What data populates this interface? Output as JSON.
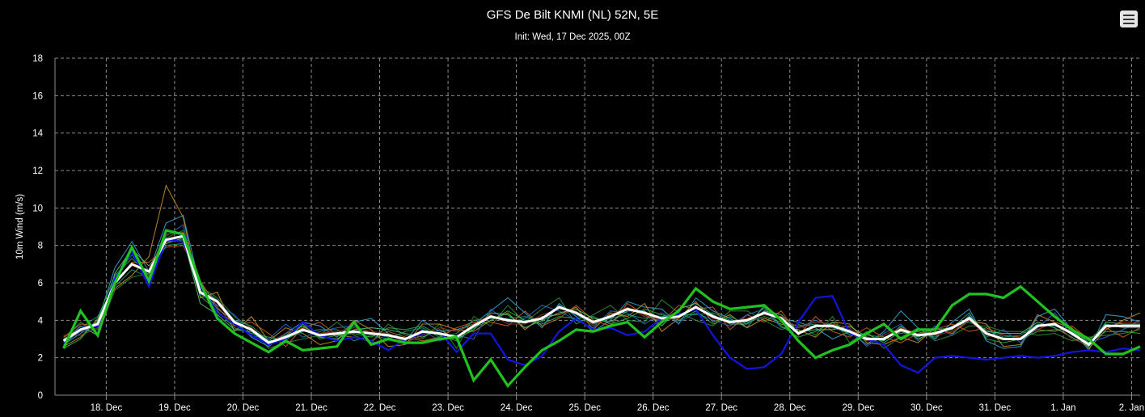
{
  "header": {
    "title": "GFS De Bilt KNMI (NL) 52N, 5E",
    "subtitle": "Init: Wed, 17 Dec 2025, 00Z"
  },
  "menu": {
    "icon": "hamburger-menu-icon"
  },
  "chart_data": {
    "type": "line",
    "title": "GFS De Bilt KNMI (NL) 52N, 5E",
    "subtitle": "Init: Wed, 17 Dec 2025, 00Z",
    "ylabel": "10m Wind (m/s)",
    "xlabel": "",
    "ylim": [
      0,
      18
    ],
    "yticks": [
      0,
      2,
      4,
      6,
      8,
      10,
      12,
      14,
      16,
      18
    ],
    "xlim": [
      "2025-12-17 06:00",
      "2026-01-02 03:00"
    ],
    "step_hours": 6,
    "xtick_labels": [
      "18. Dec",
      "19. Dec",
      "20. Dec",
      "21. Dec",
      "22. Dec",
      "23. Dec",
      "24. Dec",
      "25. Dec",
      "26. Dec",
      "27. Dec",
      "28. Dec",
      "29. Dec",
      "30. Dec",
      "31. Dec",
      "1. Jan",
      "2. Jan"
    ],
    "grid": true,
    "legend": "none",
    "colors": {
      "background": "#000000",
      "grid": "#8c8c8c",
      "mean": "#ffffff",
      "control": "#1fc21f",
      "operational": "#1414e0"
    },
    "highlighted": {
      "mean": [
        2.9,
        3.5,
        3.8,
        6.0,
        7.0,
        6.6,
        8.3,
        8.5,
        5.5,
        5.0,
        3.9,
        3.5,
        2.8,
        3.1,
        3.5,
        3.2,
        3.3,
        3.4,
        3.3,
        3.2,
        3.0,
        3.4,
        3.3,
        3.1,
        3.7,
        4.2,
        4.0,
        3.9,
        4.1,
        4.7,
        4.4,
        3.9,
        4.2,
        4.6,
        4.4,
        4.1,
        4.2,
        4.7,
        4.2,
        3.9,
        4.0,
        4.4,
        4.1,
        3.3,
        3.7,
        3.7,
        3.4,
        3.0,
        3.0,
        3.5,
        3.2,
        3.3,
        3.6,
        4.1,
        3.3,
        3.0,
        3.0,
        3.7,
        3.8,
        3.3,
        2.7,
        3.7,
        3.7,
        3.7
      ],
      "control": [
        2.5,
        4.5,
        3.2,
        6.0,
        7.9,
        6.1,
        8.8,
        8.6,
        6.0,
        4.1,
        3.3,
        2.8,
        2.3,
        2.9,
        2.4,
        2.5,
        2.6,
        3.9,
        2.7,
        3.0,
        2.8,
        2.8,
        3.0,
        3.1,
        0.8,
        1.9,
        0.5,
        1.5,
        2.4,
        2.9,
        3.5,
        3.4,
        3.7,
        3.9,
        3.1,
        3.9,
        4.5,
        5.7,
        5.0,
        4.6,
        4.7,
        4.8,
        4.0,
        2.9,
        2.0,
        2.4,
        2.7,
        3.3,
        3.8,
        3.0,
        3.5,
        3.5,
        4.8,
        5.4,
        5.4,
        5.2,
        5.8,
        5.0,
        4.2,
        3.5,
        3.0,
        2.2,
        2.2,
        2.6
      ],
      "operational": [
        2.8,
        3.6,
        3.7,
        6.2,
        7.7,
        5.8,
        8.3,
        8.2,
        5.8,
        4.4,
        3.8,
        3.2,
        2.7,
        3.0,
        3.9,
        3.2,
        2.9,
        3.1,
        2.9,
        2.4,
        3.0,
        3.3,
        3.4,
        2.3,
        3.3,
        3.3,
        1.9,
        1.6,
        2.1,
        3.4,
        4.1,
        3.5,
        3.6,
        3.2,
        3.4,
        4.1,
        4.3,
        4.6,
        3.2,
        2.0,
        1.4,
        1.5,
        2.2,
        3.9,
        5.2,
        5.3,
        3.3,
        3.0,
        2.7,
        1.6,
        1.2,
        2.0,
        2.1,
        2.0,
        1.9,
        2.0,
        2.1,
        2.0,
        2.1,
        2.3,
        2.4,
        2.3,
        2.5,
        2.4
      ]
    },
    "members": [
      {
        "color": "#3aa3d6",
        "values": [
          2.7,
          3.3,
          3.9,
          6.8,
          8.2,
          6.6,
          9.2,
          9.6,
          5.8,
          4.6,
          4.0,
          3.1,
          2.6,
          3.3,
          3.9,
          3.7,
          3.1,
          3.9,
          4.1,
          3.3,
          2.9,
          4.0,
          3.4,
          3.5,
          3.8,
          4.5,
          5.2,
          4.4,
          3.6,
          4.9,
          4.2,
          3.4,
          4.0,
          5.0,
          4.7,
          4.6,
          3.8,
          5.2,
          4.5,
          4.1,
          3.6,
          4.8,
          4.1,
          3.9,
          3.6,
          3.0,
          3.4,
          2.7,
          3.4,
          4.5,
          3.6,
          3.0,
          3.9,
          4.6,
          2.9,
          2.5,
          2.6,
          4.2,
          4.6,
          3.5,
          2.4,
          4.3,
          4.2,
          3.9
        ]
      },
      {
        "color": "#2b8f3a",
        "values": [
          3.0,
          3.9,
          3.3,
          5.6,
          6.3,
          6.5,
          8.4,
          8.8,
          5.8,
          5.2,
          4.2,
          3.6,
          2.5,
          2.8,
          3.0,
          3.2,
          3.9,
          3.2,
          2.8,
          3.8,
          3.2,
          3.0,
          3.8,
          2.5,
          4.2,
          3.7,
          4.8,
          3.9,
          4.6,
          5.2,
          3.8,
          4.3,
          4.8,
          4.0,
          3.9,
          5.1,
          4.4,
          4.0,
          3.7,
          4.5,
          4.5,
          4.0,
          3.5,
          3.8,
          3.2,
          4.2,
          2.8,
          3.4,
          2.5,
          3.1,
          3.6,
          2.9,
          3.2,
          3.7,
          3.7,
          3.4,
          3.4,
          3.2,
          3.3,
          2.9,
          3.1,
          3.2,
          3.3,
          3.5
        ]
      },
      {
        "color": "#c8902a",
        "values": [
          2.6,
          3.1,
          4.0,
          5.7,
          6.4,
          7.4,
          11.2,
          9.5,
          5.2,
          5.5,
          3.4,
          4.2,
          2.9,
          3.6,
          3.3,
          2.7,
          2.9,
          4.0,
          3.5,
          2.6,
          2.7,
          3.8,
          3.8,
          3.5,
          3.4,
          4.0,
          4.4,
          3.5,
          4.2,
          4.3,
          4.7,
          3.5,
          4.4,
          4.2,
          4.9,
          3.4,
          4.1,
          5.0,
          3.9,
          4.3,
          3.6,
          4.1,
          3.8,
          3.5,
          3.1,
          3.9,
          3.8,
          2.8,
          2.7,
          3.1,
          2.8,
          3.6,
          3.3,
          4.0,
          3.8,
          2.6,
          2.7,
          4.3,
          3.9,
          3.6,
          2.5,
          3.5,
          4.0,
          4.4
        ]
      },
      {
        "color": "#c9601e",
        "values": [
          3.1,
          3.8,
          3.7,
          5.9,
          7.1,
          7.1,
          7.9,
          8.0,
          6.1,
          4.7,
          3.7,
          3.9,
          3.3,
          2.6,
          3.6,
          3.9,
          3.2,
          3.1,
          2.9,
          3.4,
          3.1,
          2.9,
          3.1,
          3.6,
          3.9,
          3.9,
          3.7,
          4.5,
          3.7,
          4.1,
          4.8,
          4.0,
          3.7,
          4.9,
          4.3,
          3.9,
          4.8,
          4.6,
          4.7,
          3.5,
          4.3,
          3.9,
          4.5,
          3.2,
          4.2,
          3.4,
          3.1,
          3.6,
          3.1,
          2.8,
          3.3,
          3.5,
          3.8,
          3.4,
          3.6,
          3.2,
          3.1,
          3.5,
          3.4,
          3.7,
          3.0,
          3.6,
          3.1,
          3.6
        ]
      },
      {
        "color": "#2a6bc4",
        "values": [
          2.8,
          3.4,
          3.5,
          6.3,
          7.5,
          6.2,
          8.5,
          9.1,
          5.4,
          4.8,
          4.3,
          3.2,
          3.0,
          3.8,
          3.1,
          3.4,
          3.6,
          3.7,
          3.3,
          3.1,
          2.7,
          3.5,
          2.9,
          3.2,
          3.0,
          4.6,
          3.9,
          4.1,
          4.8,
          4.5,
          4.0,
          3.6,
          4.5,
          4.4,
          3.8,
          4.4,
          3.9,
          4.4,
          4.0,
          3.7,
          4.3,
          4.6,
          3.6,
          3.6,
          4.0,
          3.7,
          3.5,
          2.6,
          3.3,
          3.8,
          2.9,
          3.7,
          3.2,
          4.3,
          3.1,
          3.5,
          2.8,
          3.6,
          4.4,
          3.2,
          2.8,
          3.1,
          3.5,
          4.0
        ]
      },
      {
        "color": "#58c77a",
        "values": [
          2.9,
          3.7,
          3.2,
          6.5,
          7.8,
          6.9,
          8.1,
          8.4,
          4.9,
          4.3,
          3.5,
          3.4,
          2.7,
          3.2,
          3.7,
          3.1,
          3.0,
          3.5,
          3.6,
          3.5,
          3.3,
          3.1,
          3.5,
          3.0,
          3.5,
          4.4,
          4.3,
          3.6,
          4.0,
          4.4,
          4.6,
          4.1,
          3.9,
          4.5,
          4.5,
          3.7,
          4.6,
          4.9,
          4.3,
          3.8,
          3.8,
          4.5,
          4.3,
          3.4,
          3.5,
          3.5,
          3.7,
          3.1,
          2.9,
          3.7,
          3.0,
          3.4,
          3.5,
          4.2,
          3.4,
          3.3,
          3.3,
          3.9,
          3.6,
          3.1,
          2.6,
          3.9,
          3.8,
          3.8
        ]
      },
      {
        "color": "#1f9e6a",
        "values": [
          2.6,
          3.6,
          4.2,
          5.8,
          6.7,
          6.3,
          8.0,
          8.1,
          5.7,
          5.1,
          4.0,
          3.7,
          2.9,
          3.0,
          3.4,
          3.5,
          3.5,
          2.9,
          3.2,
          3.0,
          3.4,
          3.6,
          3.1,
          3.3,
          4.0,
          4.1,
          4.1,
          4.2,
          3.9,
          4.8,
          4.3,
          3.8,
          4.1,
          4.3,
          4.1,
          4.2,
          4.3,
          4.3,
          4.4,
          4.0,
          3.9,
          4.2,
          3.9,
          3.7,
          3.8,
          3.6,
          3.3,
          3.2,
          3.1,
          3.3,
          3.4,
          3.1,
          3.7,
          3.9,
          3.5,
          3.1,
          3.2,
          3.8,
          3.7,
          3.4,
          2.9,
          3.8,
          3.6,
          3.6
        ]
      },
      {
        "color": "#9e3b1c",
        "values": [
          3.2,
          3.2,
          3.6,
          6.1,
          6.9,
          6.7,
          8.6,
          8.7,
          5.6,
          4.9,
          3.8,
          3.6,
          2.8,
          3.3,
          3.6,
          3.3,
          3.4,
          3.6,
          3.4,
          3.3,
          2.8,
          3.2,
          3.6,
          3.4,
          3.8,
          4.3,
          3.8,
          3.8,
          4.3,
          4.6,
          4.5,
          3.7,
          4.3,
          4.7,
          4.2,
          4.0,
          4.1,
          4.8,
          4.1,
          3.9,
          4.1,
          4.3,
          4.2,
          3.6,
          3.9,
          3.8,
          3.6,
          2.9,
          3.2,
          3.6,
          3.3,
          3.2,
          3.4,
          4.0,
          3.2,
          3.0,
          3.1,
          3.5,
          3.9,
          3.0,
          2.7,
          3.6,
          3.9,
          3.9
        ]
      },
      {
        "color": "#2fb34a",
        "values": [
          2.5,
          3.0,
          4.1,
          6.4,
          7.3,
          6.4,
          8.2,
          8.3,
          5.3,
          4.5,
          3.6,
          3.3,
          3.1,
          2.9,
          3.8,
          3.0,
          3.2,
          3.3,
          3.1,
          3.6,
          3.5,
          3.7,
          3.2,
          2.9,
          3.6,
          4.0,
          4.5,
          4.0,
          3.8,
          4.2,
          4.1,
          4.2,
          3.8,
          4.1,
          4.6,
          4.3,
          4.0,
          4.5,
          3.8,
          4.2,
          3.8,
          4.7,
          3.7,
          3.1,
          3.4,
          3.9,
          3.2,
          3.3,
          2.8,
          3.4,
          3.1,
          3.5,
          3.6,
          4.4,
          3.0,
          2.8,
          3.0,
          3.4,
          3.5,
          3.5,
          2.8,
          3.4,
          3.4,
          3.3
        ]
      }
    ]
  }
}
